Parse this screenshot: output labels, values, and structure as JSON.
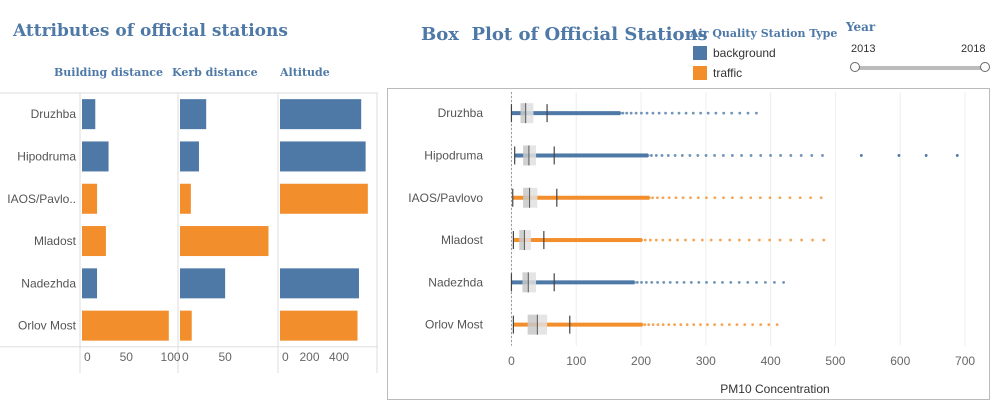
{
  "left_title": "Attributes of official stations",
  "right_title": "Box  Plot of Official Stations",
  "legend": {
    "title": "Air Quality Station Type",
    "items": [
      {
        "label": "background",
        "color": "#4e79a7"
      },
      {
        "label": "traffic",
        "color": "#f28e2b"
      }
    ]
  },
  "year_filter": {
    "title": "Year",
    "min_label": "2013",
    "max_label": "2018"
  },
  "stations": [
    "Druzhba",
    "Hipodruma",
    "IAOS/Pavlo..",
    "Mladost",
    "Nadezhda",
    "Orlov Most"
  ],
  "box_stations": [
    "Druzhba",
    "Hipodruma",
    "IAOS/Pavlovo",
    "Mladost",
    "Nadezhda",
    "Orlov Most"
  ],
  "colors": {
    "background": "#4e79a7",
    "traffic": "#f28e2b"
  },
  "chart_data": [
    {
      "type": "bar",
      "title": "Building distance",
      "categories": [
        "Druzhba",
        "Hipodruma",
        "IAOS/Pavlo..",
        "Mladost",
        "Nadezhda",
        "Orlov Most"
      ],
      "values": [
        15,
        30,
        17,
        27,
        17,
        98
      ],
      "station_type": [
        "background",
        "background",
        "traffic",
        "traffic",
        "background",
        "traffic"
      ],
      "xlim": [
        0,
        105
      ],
      "ticks": [
        0,
        50,
        100
      ]
    },
    {
      "type": "bar",
      "title": "Kerb distance",
      "categories": [
        "Druzhba",
        "Hipodruma",
        "IAOS/Pavlo..",
        "Mladost",
        "Nadezhda",
        "Orlov Most"
      ],
      "values": [
        29,
        21,
        12,
        98,
        50,
        13
      ],
      "station_type": [
        "background",
        "background",
        "traffic",
        "traffic",
        "background",
        "traffic"
      ],
      "xlim": [
        0,
        103
      ],
      "ticks": [
        0,
        50
      ]
    },
    {
      "type": "bar",
      "title": "Altitude",
      "categories": [
        "Druzhba",
        "Hipodruma",
        "IAOS/Pavlo..",
        "Mladost",
        "Nadezhda",
        "Orlov Most"
      ],
      "values": [
        550,
        580,
        595,
        0,
        535,
        525
      ],
      "station_type": [
        "background",
        "background",
        "traffic",
        "traffic",
        "background",
        "traffic"
      ],
      "xlim": [
        0,
        630
      ],
      "ticks": [
        0,
        200,
        400
      ]
    },
    {
      "type": "box",
      "title": "Box  Plot of Official Stations",
      "xlabel": "PM10 Concentration",
      "xlim": [
        -30,
        720
      ],
      "ticks": [
        0,
        100,
        200,
        300,
        400,
        500,
        600,
        700
      ],
      "series": [
        {
          "name": "Druzhba",
          "station_type": "background",
          "min": 0,
          "q1": 14,
          "median": 22,
          "q3": 34,
          "max": 55,
          "outlier_max": 378
        },
        {
          "name": "Hipodruma",
          "station_type": "background",
          "min": 5,
          "q1": 18,
          "median": 27,
          "q3": 38,
          "max": 66,
          "outlier_max": 480,
          "far_outliers": [
            540,
            598,
            640,
            688
          ]
        },
        {
          "name": "IAOS/Pavlovo",
          "station_type": "traffic",
          "min": 2,
          "q1": 18,
          "median": 28,
          "q3": 40,
          "max": 70,
          "outlier_max": 478
        },
        {
          "name": "Mladost",
          "station_type": "traffic",
          "min": 3,
          "q1": 12,
          "median": 20,
          "q3": 30,
          "max": 50,
          "outlier_max": 482
        },
        {
          "name": "Nadezhda",
          "station_type": "background",
          "min": 0,
          "q1": 17,
          "median": 26,
          "q3": 38,
          "max": 66,
          "outlier_max": 420
        },
        {
          "name": "Orlov Most",
          "station_type": "traffic",
          "min": 3,
          "q1": 25,
          "median": 40,
          "q3": 55,
          "max": 90,
          "outlier_max": 410
        }
      ]
    }
  ]
}
